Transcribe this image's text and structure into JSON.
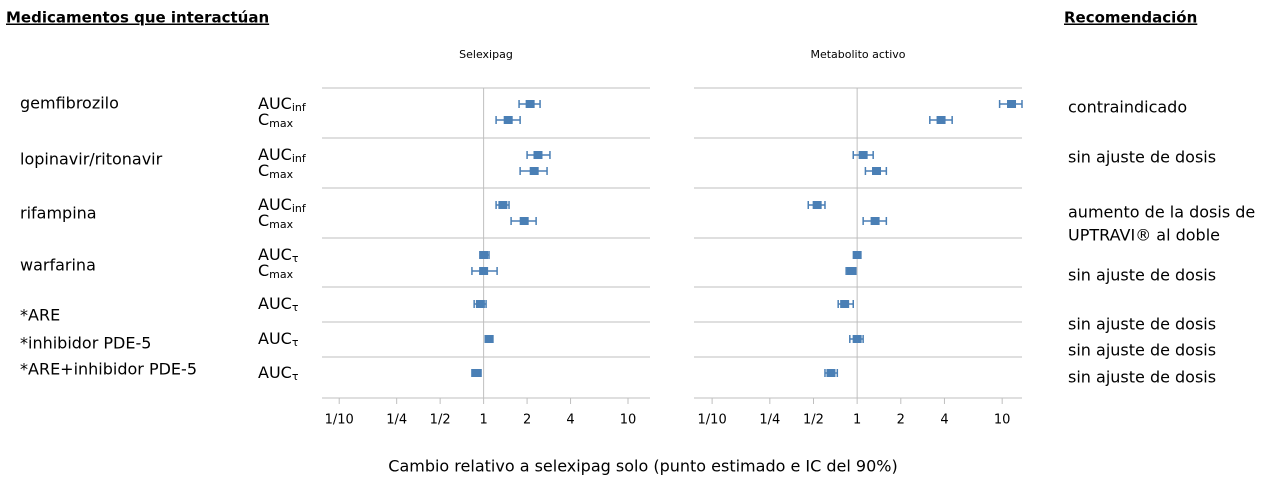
{
  "left_header": "Medicamentos que interactúan",
  "right_header": "Recomendación",
  "x_label": "Cambio relativo a selexipag solo (punto estimado e IC del 90%)",
  "drugs": [
    "gemfibrozilo",
    "lopinavir/ritonavir",
    "rifampina",
    "warfarina",
    "*ARE",
    "*inhibidor PDE-5",
    "*ARE+inhibidor PDE-5"
  ],
  "measures": [
    {
      "base": "AUC",
      "sub": "inf"
    },
    {
      "base": "C",
      "sub": "max"
    },
    {
      "base": "AUC",
      "sub": "inf"
    },
    {
      "base": "C",
      "sub": "max"
    },
    {
      "base": "AUC",
      "sub": "inf"
    },
    {
      "base": "C",
      "sub": "max"
    },
    {
      "base": "AUC",
      "sub": "τ"
    },
    {
      "base": "C",
      "sub": "max"
    },
    {
      "base": "AUC",
      "sub": "τ"
    },
    {
      "base": "AUC",
      "sub": "τ"
    },
    {
      "base": "AUC",
      "sub": "τ"
    }
  ],
  "recommendations": [
    [
      "contraindicado"
    ],
    [
      "sin ajuste de dosis"
    ],
    [
      "aumento de la dosis de",
      "UPTRAVI® al doble"
    ],
    [
      "sin ajuste de dosis"
    ],
    [
      "sin ajuste de dosis"
    ],
    [
      "sin ajuste de dosis"
    ],
    [
      "sin ajuste de dosis"
    ]
  ],
  "chart_data": [
    {
      "type": "forest",
      "title": "Selexipag",
      "log_x": true,
      "color": "#4a7fb5",
      "ref_line": 1,
      "xlim": [
        0.076,
        14.2
      ],
      "xticks": [
        {
          "value": 0.1,
          "label": "1/10"
        },
        {
          "value": 0.25,
          "label": "1/4"
        },
        {
          "value": 0.5,
          "label": "1/2"
        },
        1,
        2,
        4,
        10
      ],
      "values": [
        2.1,
        1.48,
        2.38,
        2.24,
        1.36,
        1.91,
        1.0,
        1.0,
        0.95,
        1.09,
        0.89
      ],
      "low": [
        1.76,
        1.22,
        2.0,
        1.79,
        1.22,
        1.55,
        0.95,
        0.83,
        0.86,
        1.04,
        0.83
      ],
      "high": [
        2.46,
        1.79,
        2.88,
        2.75,
        1.5,
        2.31,
        1.09,
        1.24,
        1.04,
        1.16,
        0.96
      ]
    },
    {
      "type": "forest",
      "title": "Metabolito activo",
      "log_x": true,
      "color": "#4a7fb5",
      "ref_line": 1,
      "xlim": [
        0.075,
        13.7
      ],
      "xticks": [
        {
          "value": 0.1,
          "label": "1/10"
        },
        {
          "value": 0.25,
          "label": "1/4"
        },
        {
          "value": 0.5,
          "label": "1/2"
        },
        1,
        2,
        4,
        10
      ],
      "values": [
        11.6,
        3.79,
        1.1,
        1.36,
        0.53,
        1.33,
        1.0,
        0.91,
        0.82,
        1.0,
        0.66
      ],
      "low": [
        9.6,
        3.17,
        0.94,
        1.14,
        0.46,
        1.1,
        0.95,
        0.84,
        0.74,
        0.89,
        0.6
      ],
      "high": [
        13.7,
        4.52,
        1.29,
        1.59,
        0.6,
        1.59,
        1.05,
        0.98,
        0.94,
        1.1,
        0.73
      ]
    }
  ]
}
